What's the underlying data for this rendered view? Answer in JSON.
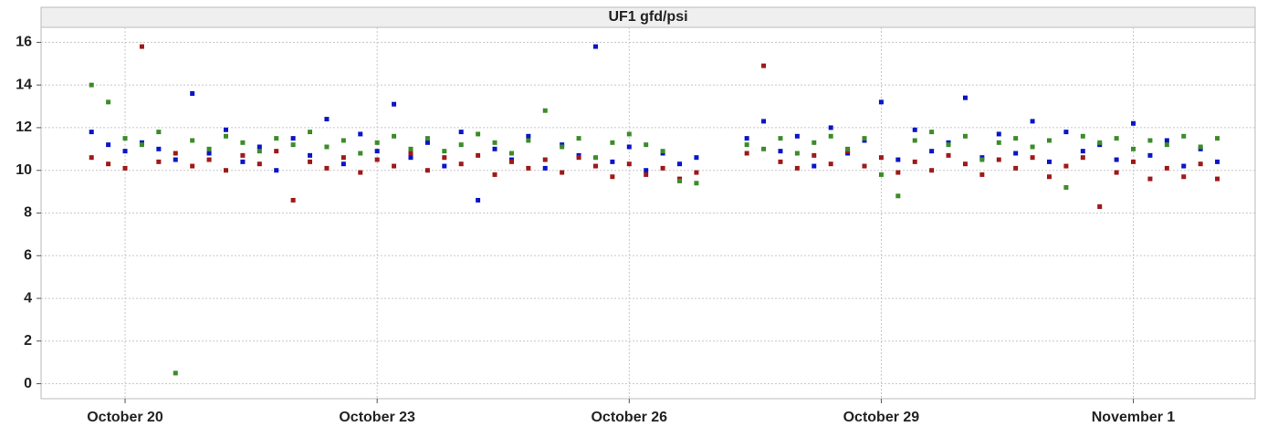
{
  "chart_data": {
    "type": "scatter",
    "title": "UF1 gfd/psi",
    "x": [
      19.6,
      19.8,
      20.0,
      20.2,
      20.4,
      20.6,
      20.8,
      21.0,
      21.2,
      21.4,
      21.6,
      21.8,
      22.0,
      22.2,
      22.4,
      22.6,
      22.8,
      23.0,
      23.2,
      23.4,
      23.6,
      23.8,
      24.0,
      24.2,
      24.4,
      24.6,
      24.8,
      25.0,
      25.2,
      25.4,
      25.6,
      25.8,
      26.0,
      26.2,
      26.4,
      26.6,
      26.8,
      27.0,
      27.2,
      27.4,
      27.6,
      27.8,
      28.0,
      28.2,
      28.4,
      28.6,
      28.8,
      29.0,
      29.2,
      29.4,
      29.6,
      29.8,
      30.0,
      30.2,
      30.4,
      30.6,
      30.8,
      31.0,
      31.2,
      31.4,
      31.6,
      31.8,
      32.0,
      32.2,
      32.4,
      32.6,
      32.8,
      33.0
    ],
    "series": [
      {
        "color": "#0a14c8",
        "values": [
          11.8,
          11.2,
          10.9,
          11.3,
          11.0,
          10.5,
          13.6,
          10.8,
          11.9,
          10.4,
          11.1,
          10.0,
          11.5,
          10.7,
          12.4,
          10.3,
          11.7,
          10.9,
          13.1,
          10.6,
          11.3,
          10.2,
          11.8,
          8.6,
          11.0,
          10.5,
          11.6,
          10.1,
          11.2,
          10.7,
          15.8,
          10.4,
          11.1,
          10.0,
          10.8,
          10.3,
          10.6,
          null,
          null,
          11.5,
          12.3,
          10.9,
          11.6,
          10.2,
          12.0,
          10.8,
          11.4,
          13.2,
          10.5,
          11.9,
          10.9,
          11.3,
          13.4,
          10.6,
          11.7,
          10.8,
          12.3,
          10.4,
          11.8,
          10.9,
          11.2,
          10.5,
          12.2,
          10.7,
          11.4,
          10.2,
          11.0,
          10.4
        ]
      },
      {
        "color": "#a01818",
        "values": [
          10.6,
          10.3,
          10.1,
          15.8,
          10.4,
          10.8,
          10.2,
          10.5,
          10.0,
          10.7,
          10.3,
          10.9,
          8.6,
          10.4,
          10.1,
          10.6,
          9.9,
          10.5,
          10.2,
          10.8,
          10.0,
          10.6,
          10.3,
          10.7,
          9.8,
          10.4,
          10.1,
          10.5,
          9.9,
          10.6,
          10.2,
          9.7,
          10.3,
          9.8,
          10.1,
          9.6,
          9.9,
          null,
          null,
          10.8,
          14.9,
          10.4,
          10.1,
          10.7,
          10.3,
          10.9,
          10.2,
          10.6,
          9.9,
          10.4,
          10.0,
          10.7,
          10.3,
          9.8,
          10.5,
          10.1,
          10.6,
          9.7,
          10.2,
          10.6,
          8.3,
          9.9,
          10.4,
          9.6,
          10.1,
          9.7,
          10.3,
          9.6
        ]
      },
      {
        "color": "#3c8c28",
        "values": [
          14.0,
          13.2,
          11.5,
          11.2,
          11.8,
          0.5,
          11.4,
          11.0,
          11.6,
          11.3,
          10.9,
          11.5,
          11.2,
          11.8,
          11.1,
          11.4,
          10.8,
          11.3,
          11.6,
          11.0,
          11.5,
          10.9,
          11.2,
          11.7,
          11.3,
          10.8,
          11.4,
          12.8,
          11.1,
          11.5,
          10.6,
          11.3,
          11.7,
          11.2,
          10.9,
          9.5,
          9.4,
          null,
          null,
          11.2,
          11.0,
          11.5,
          10.8,
          11.3,
          11.6,
          11.0,
          11.5,
          9.8,
          8.8,
          11.4,
          11.8,
          11.2,
          11.6,
          10.5,
          11.3,
          11.5,
          11.1,
          11.4,
          9.2,
          11.6,
          11.3,
          11.5,
          11.0,
          11.4,
          11.2,
          11.6,
          11.1,
          11.5
        ]
      }
    ],
    "xlim": [
      19.0,
      33.45
    ],
    "xticks": [
      {
        "value": 20,
        "label": "October 20"
      },
      {
        "value": 23,
        "label": "October 23"
      },
      {
        "value": 26,
        "label": "October 26"
      },
      {
        "value": 29,
        "label": "October 29"
      },
      {
        "value": 32,
        "label": "November 1"
      }
    ],
    "ylim": [
      -0.7,
      16.7
    ],
    "yticks": [
      0,
      2,
      4,
      6,
      8,
      10,
      12,
      14,
      16
    ],
    "grid": true
  }
}
